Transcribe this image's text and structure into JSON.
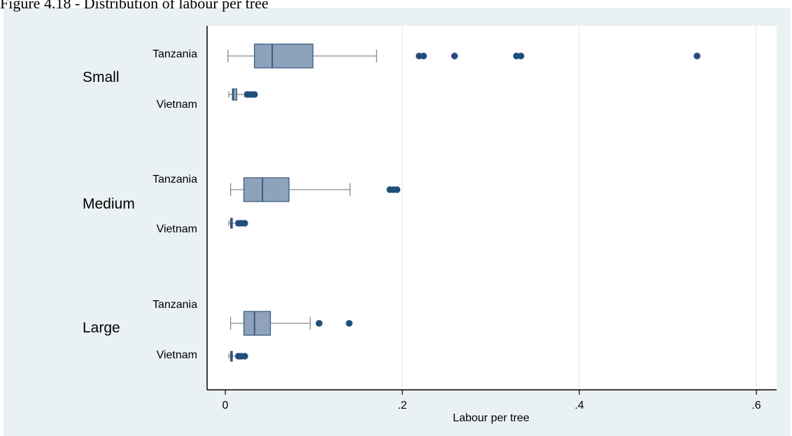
{
  "caption": "Figure 4.18 - Distribution of labour per tree",
  "colors": {
    "panel_background": "#eaf1f3",
    "plot_background": "#ffffff",
    "box_fill": "#8ea3bb",
    "box_stroke": "#34557a",
    "outlier": "#1f4e79",
    "whisker": "#8a8a8a",
    "grid": "#e3e3e3",
    "axis": "#000000"
  },
  "chart_data": {
    "type": "box",
    "orientation": "horizontal",
    "xlabel": "Labour per tree",
    "xlim": [
      -0.02,
      0.62
    ],
    "xticks": [
      0,
      0.2,
      0.4,
      0.6
    ],
    "xtick_labels": [
      "0",
      ".2",
      ".4",
      ".6"
    ],
    "grid": "vertical",
    "groups": [
      {
        "name": "Small",
        "boxes": [
          {
            "label": "Tanzania",
            "min": 0.003,
            "q1": 0.033,
            "median": 0.053,
            "q3": 0.099,
            "max": 0.171,
            "outliers": [
              0.219,
              0.224,
              0.259,
              0.329,
              0.334,
              0.533
            ]
          },
          {
            "label": "Vietnam",
            "min": 0.004,
            "q1": 0.008,
            "median": 0.009,
            "q3": 0.013,
            "max": 0.022,
            "outliers": [
              0.025,
              0.029,
              0.033
            ]
          }
        ]
      },
      {
        "name": "Medium",
        "boxes": [
          {
            "label": "Tanzania",
            "min": 0.006,
            "q1": 0.021,
            "median": 0.042,
            "q3": 0.072,
            "max": 0.141,
            "outliers": [
              0.186,
              0.19,
              0.194
            ]
          },
          {
            "label": "Vietnam",
            "min": 0.004,
            "q1": 0.006,
            "median": 0.007,
            "q3": 0.008,
            "max": 0.012,
            "outliers": [
              0.015,
              0.018,
              0.022
            ]
          }
        ]
      },
      {
        "name": "Large",
        "boxes": [
          {
            "label": "Tanzania",
            "min": 0.006,
            "q1": 0.021,
            "median": 0.033,
            "q3": 0.051,
            "max": 0.096,
            "outliers": [
              0.106,
              0.14
            ]
          },
          {
            "label": "Vietnam",
            "min": 0.004,
            "q1": 0.006,
            "median": 0.007,
            "q3": 0.008,
            "max": 0.012,
            "outliers": [
              0.015,
              0.018,
              0.022
            ]
          }
        ]
      }
    ]
  }
}
